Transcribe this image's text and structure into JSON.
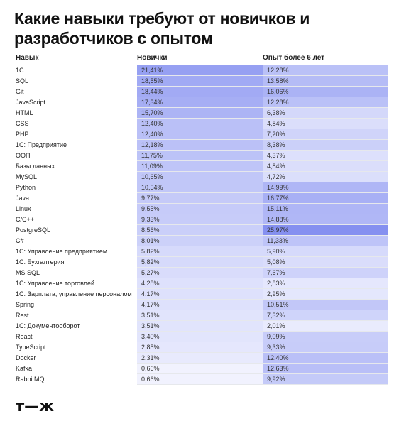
{
  "title": "Какие навыки требуют от новичков и разработчиков с опытом",
  "logo": "т—ж",
  "chart_data": {
    "type": "table",
    "columns": [
      "Навык",
      "Новички",
      "Опыт более 6 лет"
    ],
    "rows": [
      {
        "skill": "1С",
        "junior": "21,41%",
        "senior": "12,28%",
        "junior_value": 21.41,
        "senior_value": 12.28
      },
      {
        "skill": "SQL",
        "junior": "18,55%",
        "senior": "13,58%",
        "junior_value": 18.55,
        "senior_value": 13.58
      },
      {
        "skill": "Git",
        "junior": "18,44%",
        "senior": "16,06%",
        "junior_value": 18.44,
        "senior_value": 16.06
      },
      {
        "skill": "JavaScript",
        "junior": "17,34%",
        "senior": "12,28%",
        "junior_value": 17.34,
        "senior_value": 12.28
      },
      {
        "skill": "HTML",
        "junior": "15,70%",
        "senior": "6,38%",
        "junior_value": 15.7,
        "senior_value": 6.38
      },
      {
        "skill": "CSS",
        "junior": "12,40%",
        "senior": "4,84%",
        "junior_value": 12.4,
        "senior_value": 4.84
      },
      {
        "skill": "PHP",
        "junior": "12,40%",
        "senior": "7,20%",
        "junior_value": 12.4,
        "senior_value": 7.2
      },
      {
        "skill": "1С: Предприятие",
        "junior": "12,18%",
        "senior": "8,38%",
        "junior_value": 12.18,
        "senior_value": 8.38
      },
      {
        "skill": "ООП",
        "junior": "11,75%",
        "senior": "4,37%",
        "junior_value": 11.75,
        "senior_value": 4.37
      },
      {
        "skill": "Базы данных",
        "junior": "11,09%",
        "senior": "4,84%",
        "junior_value": 11.09,
        "senior_value": 4.84
      },
      {
        "skill": "MySQL",
        "junior": "10,65%",
        "senior": "4,72%",
        "junior_value": 10.65,
        "senior_value": 4.72
      },
      {
        "skill": "Python",
        "junior": "10,54%",
        "senior": "14,99%",
        "junior_value": 10.54,
        "senior_value": 14.99
      },
      {
        "skill": "Java",
        "junior": "9,77%",
        "senior": "16,77%",
        "junior_value": 9.77,
        "senior_value": 16.77
      },
      {
        "skill": "Linux",
        "junior": "9,55%",
        "senior": "15,11%",
        "junior_value": 9.55,
        "senior_value": 15.11
      },
      {
        "skill": "C/C++",
        "junior": "9,33%",
        "senior": "14,88%",
        "junior_value": 9.33,
        "senior_value": 14.88
      },
      {
        "skill": "PostgreSQL",
        "junior": "8,56%",
        "senior": "25,97%",
        "junior_value": 8.56,
        "senior_value": 25.97
      },
      {
        "skill": "C#",
        "junior": "8,01%",
        "senior": "11,33%",
        "junior_value": 8.01,
        "senior_value": 11.33
      },
      {
        "skill": "1С: Управление предприятием",
        "junior": "5,82%",
        "senior": "5,90%",
        "junior_value": 5.82,
        "senior_value": 5.9
      },
      {
        "skill": "1С: Бухгалтерия",
        "junior": "5,82%",
        "senior": "5,08%",
        "junior_value": 5.82,
        "senior_value": 5.08
      },
      {
        "skill": "MS SQL",
        "junior": "5,27%",
        "senior": "7,67%",
        "junior_value": 5.27,
        "senior_value": 7.67
      },
      {
        "skill": "1С: Управление торговлей",
        "junior": "4,28%",
        "senior": "2,83%",
        "junior_value": 4.28,
        "senior_value": 2.83
      },
      {
        "skill": "1С: Зарплата, управление персоналом",
        "junior": "4,17%",
        "senior": "2,95%",
        "junior_value": 4.17,
        "senior_value": 2.95
      },
      {
        "skill": "Spring",
        "junior": "4,17%",
        "senior": "10,51%",
        "junior_value": 4.17,
        "senior_value": 10.51
      },
      {
        "skill": "Rest",
        "junior": "3,51%",
        "senior": "7,32%",
        "junior_value": 3.51,
        "senior_value": 7.32
      },
      {
        "skill": "1С: Документооборот",
        "junior": "3,51%",
        "senior": "2,01%",
        "junior_value": 3.51,
        "senior_value": 2.01
      },
      {
        "skill": "React",
        "junior": "3,40%",
        "senior": "9,09%",
        "junior_value": 3.4,
        "senior_value": 9.09
      },
      {
        "skill": "TypeScript",
        "junior": "2,85%",
        "senior": "9,33%",
        "junior_value": 2.85,
        "senior_value": 9.33
      },
      {
        "skill": "Docker",
        "junior": "2,31%",
        "senior": "12,40%",
        "junior_value": 2.31,
        "senior_value": 12.4
      },
      {
        "skill": "Kafka",
        "junior": "0,66%",
        "senior": "12,63%",
        "junior_value": 0.66,
        "senior_value": 12.63
      },
      {
        "skill": "RabbitMQ",
        "junior": "0,66%",
        "senior": "9,92%",
        "junior_value": 0.66,
        "senior_value": 9.92
      }
    ],
    "heat_color_low": "#f6f7ff",
    "heat_color_high": "#8590f0"
  }
}
